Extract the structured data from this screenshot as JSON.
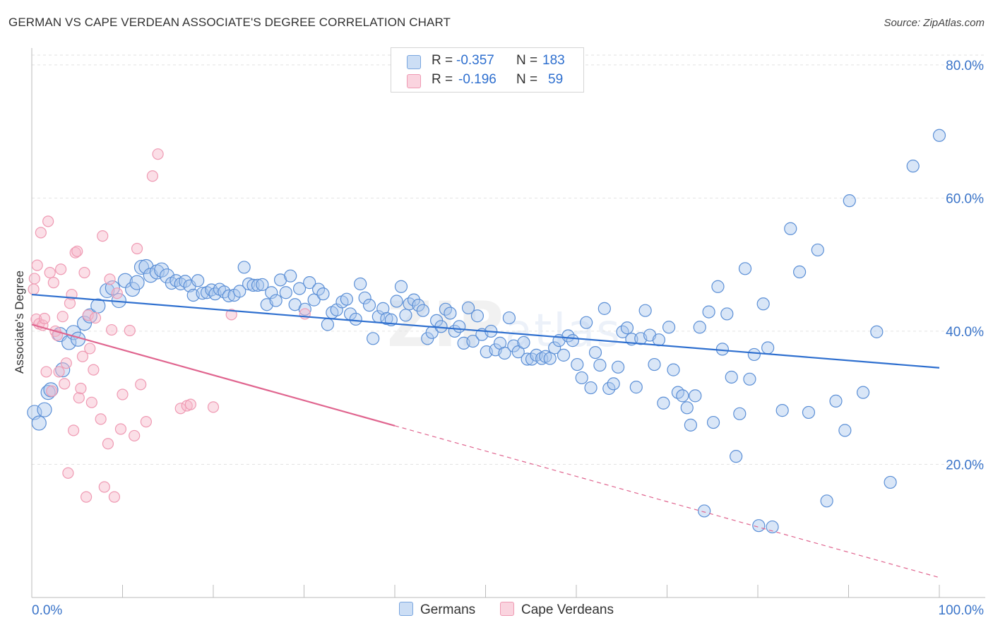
{
  "header": {
    "title": "GERMAN VS CAPE VERDEAN ASSOCIATE'S DEGREE CORRELATION CHART",
    "source": "Source: ZipAtlas.com"
  },
  "legend_top": {
    "rows": [
      {
        "r_label": "R =",
        "r_value": "-0.357",
        "n_label": "N =",
        "n_value": "183",
        "color": "#a9c9ee"
      },
      {
        "r_label": "R =",
        "r_value": "-0.196",
        "n_label": "N =",
        "n_value": "59",
        "color": "#f6b8c9"
      }
    ]
  },
  "legend_bottom": {
    "germans": "Germans",
    "cape_verdeans": "Cape Verdeans"
  },
  "watermark": {
    "bold": "ZIP",
    "light": "atlas"
  },
  "colors": {
    "blue_fill": "rgba(170,200,238,0.45)",
    "blue_stroke": "#5b8fd6",
    "blue_line": "#2e6fcf",
    "pink_fill": "rgba(246,184,201,0.45)",
    "pink_stroke": "#ef9ab3",
    "pink_line": "#e0658f",
    "axis_text": "#3a74c9"
  },
  "chart_data": {
    "type": "scatter",
    "title": "GERMAN VS CAPE VERDEAN ASSOCIATE'S DEGREE CORRELATION CHART",
    "xlabel": "",
    "ylabel": "Associate's Degree",
    "xlim": [
      0,
      100
    ],
    "ylim": [
      0,
      82
    ],
    "x_tick_labels": [
      "0.0%",
      "100.0%"
    ],
    "y_ticks": [
      20,
      40,
      60,
      80
    ],
    "y_tick_labels": [
      "20.0%",
      "40.0%",
      "60.0%",
      "80.0%"
    ],
    "grid": true,
    "legend_position": "top-center",
    "series": [
      {
        "name": "Germans",
        "r": -0.357,
        "n": 183,
        "trend": {
          "x": [
            0,
            100
          ],
          "y": [
            45.5,
            34.5
          ],
          "solid_until_x": 100
        },
        "points": [
          [
            0.3,
            27.8
          ],
          [
            0.8,
            26.2
          ],
          [
            1.4,
            28.2
          ],
          [
            1.8,
            30.8
          ],
          [
            2.1,
            31.2
          ],
          [
            3.1,
            39.5
          ],
          [
            3.4,
            34.2
          ],
          [
            4.1,
            38.3
          ],
          [
            4.6,
            39.8
          ],
          [
            5.1,
            38.8
          ],
          [
            5.8,
            41.2
          ],
          [
            6.4,
            42.3
          ],
          [
            7.3,
            43.8
          ],
          [
            8.3,
            46.1
          ],
          [
            8.9,
            46.5
          ],
          [
            9.6,
            44.6
          ],
          [
            10.3,
            47.6
          ],
          [
            11.1,
            46.3
          ],
          [
            11.6,
            47.3
          ],
          [
            12.1,
            49.6
          ],
          [
            12.6,
            49.7
          ],
          [
            13.1,
            48.4
          ],
          [
            13.8,
            48.9
          ],
          [
            14.3,
            49.2
          ],
          [
            14.9,
            48.3
          ],
          [
            15.4,
            47.2
          ],
          [
            15.9,
            47.6
          ],
          [
            16.4,
            47.1
          ],
          [
            16.9,
            47.5
          ],
          [
            17.4,
            46.8
          ],
          [
            17.8,
            45.4
          ],
          [
            18.3,
            47.6
          ],
          [
            18.8,
            45.7
          ],
          [
            19.3,
            45.8
          ],
          [
            19.8,
            46.2
          ],
          [
            20.2,
            45.6
          ],
          [
            20.7,
            46.3
          ],
          [
            21.2,
            45.9
          ],
          [
            21.7,
            45.3
          ],
          [
            22.3,
            45.4
          ],
          [
            22.9,
            46.0
          ],
          [
            23.4,
            49.6
          ],
          [
            23.9,
            47.1
          ],
          [
            24.4,
            46.9
          ],
          [
            24.9,
            46.9
          ],
          [
            25.4,
            47.0
          ],
          [
            25.9,
            44.0
          ],
          [
            26.4,
            45.8
          ],
          [
            26.9,
            44.6
          ],
          [
            27.4,
            47.7
          ],
          [
            28.0,
            45.8
          ],
          [
            28.5,
            48.3
          ],
          [
            29.0,
            44.0
          ],
          [
            29.5,
            46.4
          ],
          [
            30.1,
            43.3
          ],
          [
            30.6,
            47.3
          ],
          [
            31.1,
            44.7
          ],
          [
            31.6,
            46.3
          ],
          [
            32.1,
            45.6
          ],
          [
            32.6,
            41.0
          ],
          [
            33.1,
            42.8
          ],
          [
            33.6,
            43.2
          ],
          [
            34.2,
            44.4
          ],
          [
            34.7,
            44.8
          ],
          [
            35.1,
            42.6
          ],
          [
            35.7,
            41.8
          ],
          [
            36.2,
            47.1
          ],
          [
            36.7,
            45.0
          ],
          [
            37.2,
            43.9
          ],
          [
            37.6,
            38.9
          ],
          [
            38.2,
            42.2
          ],
          [
            38.7,
            43.4
          ],
          [
            39.1,
            41.9
          ],
          [
            39.6,
            41.7
          ],
          [
            40.2,
            44.5
          ],
          [
            40.7,
            46.7
          ],
          [
            41.2,
            42.4
          ],
          [
            41.6,
            44.1
          ],
          [
            42.1,
            44.7
          ],
          [
            42.6,
            43.9
          ],
          [
            43.1,
            43.1
          ],
          [
            43.6,
            38.9
          ],
          [
            44.1,
            39.8
          ],
          [
            44.6,
            41.6
          ],
          [
            45.1,
            40.7
          ],
          [
            45.6,
            43.3
          ],
          [
            46.1,
            42.7
          ],
          [
            46.6,
            40.0
          ],
          [
            47.1,
            40.7
          ],
          [
            47.6,
            38.2
          ],
          [
            48.1,
            43.5
          ],
          [
            48.6,
            38.5
          ],
          [
            49.1,
            42.3
          ],
          [
            49.6,
            39.5
          ],
          [
            50.1,
            36.9
          ],
          [
            50.6,
            40.0
          ],
          [
            51.1,
            37.2
          ],
          [
            51.6,
            38.2
          ],
          [
            52.1,
            36.7
          ],
          [
            52.6,
            42.0
          ],
          [
            53.1,
            37.8
          ],
          [
            53.6,
            36.9
          ],
          [
            54.2,
            38.3
          ],
          [
            54.6,
            35.8
          ],
          [
            55.1,
            35.8
          ],
          [
            55.6,
            36.4
          ],
          [
            56.2,
            35.9
          ],
          [
            56.6,
            36.2
          ],
          [
            57.1,
            35.9
          ],
          [
            57.6,
            37.5
          ],
          [
            58.1,
            38.6
          ],
          [
            58.6,
            36.4
          ],
          [
            59.1,
            39.3
          ],
          [
            59.6,
            38.6
          ],
          [
            60.1,
            35.0
          ],
          [
            60.6,
            33.0
          ],
          [
            61.1,
            41.3
          ],
          [
            61.6,
            31.5
          ],
          [
            62.1,
            36.8
          ],
          [
            62.6,
            34.9
          ],
          [
            63.1,
            43.4
          ],
          [
            63.6,
            31.4
          ],
          [
            64.1,
            32.1
          ],
          [
            64.6,
            34.6
          ],
          [
            65.1,
            39.9
          ],
          [
            65.6,
            40.5
          ],
          [
            66.1,
            38.8
          ],
          [
            66.6,
            31.6
          ],
          [
            67.1,
            38.9
          ],
          [
            67.6,
            43.1
          ],
          [
            68.1,
            39.4
          ],
          [
            68.6,
            35.0
          ],
          [
            69.1,
            38.7
          ],
          [
            69.6,
            29.2
          ],
          [
            70.2,
            40.6
          ],
          [
            70.7,
            34.2
          ],
          [
            71.2,
            30.8
          ],
          [
            71.7,
            30.3
          ],
          [
            72.2,
            28.5
          ],
          [
            72.6,
            25.9
          ],
          [
            73.1,
            30.3
          ],
          [
            73.6,
            40.6
          ],
          [
            74.1,
            13.0
          ],
          [
            74.6,
            42.9
          ],
          [
            75.1,
            26.3
          ],
          [
            75.6,
            46.7
          ],
          [
            76.1,
            37.3
          ],
          [
            76.6,
            42.6
          ],
          [
            77.1,
            33.1
          ],
          [
            77.6,
            21.2
          ],
          [
            78.0,
            27.6
          ],
          [
            78.6,
            49.4
          ],
          [
            79.1,
            32.8
          ],
          [
            79.6,
            36.5
          ],
          [
            80.1,
            10.8
          ],
          [
            80.6,
            44.1
          ],
          [
            81.1,
            37.5
          ],
          [
            81.6,
            10.6
          ],
          [
            82.7,
            28.1
          ],
          [
            83.6,
            55.4
          ],
          [
            84.6,
            48.9
          ],
          [
            85.6,
            27.8
          ],
          [
            86.6,
            52.2
          ],
          [
            87.6,
            14.5
          ],
          [
            88.6,
            29.5
          ],
          [
            89.6,
            25.1
          ],
          [
            90.1,
            59.6
          ],
          [
            91.6,
            30.8
          ],
          [
            93.1,
            39.9
          ],
          [
            94.6,
            17.3
          ],
          [
            97.1,
            64.8
          ],
          [
            100.0,
            69.4
          ]
        ]
      },
      {
        "name": "Cape Verdeans",
        "r": -0.196,
        "n": 59,
        "trend": {
          "x": [
            0,
            100
          ],
          "y": [
            41.0,
            3.0
          ],
          "solid_until_x": 40
        },
        "points": [
          [
            0.2,
            46.3
          ],
          [
            0.3,
            47.9
          ],
          [
            0.5,
            41.8
          ],
          [
            0.6,
            49.9
          ],
          [
            0.8,
            41.1
          ],
          [
            1.0,
            54.8
          ],
          [
            1.2,
            40.9
          ],
          [
            1.4,
            41.9
          ],
          [
            1.6,
            33.9
          ],
          [
            1.8,
            56.5
          ],
          [
            2.0,
            48.8
          ],
          [
            2.2,
            31.0
          ],
          [
            2.4,
            47.3
          ],
          [
            2.6,
            40.0
          ],
          [
            2.8,
            39.4
          ],
          [
            3.0,
            33.9
          ],
          [
            3.2,
            49.3
          ],
          [
            3.4,
            42.2
          ],
          [
            3.6,
            32.1
          ],
          [
            3.8,
            35.2
          ],
          [
            4.0,
            18.7
          ],
          [
            4.2,
            44.2
          ],
          [
            4.4,
            45.5
          ],
          [
            4.6,
            25.1
          ],
          [
            4.8,
            51.8
          ],
          [
            5.0,
            52.0
          ],
          [
            5.2,
            30.0
          ],
          [
            5.4,
            31.4
          ],
          [
            5.6,
            36.2
          ],
          [
            5.8,
            48.8
          ],
          [
            6.0,
            15.1
          ],
          [
            6.2,
            42.4
          ],
          [
            6.4,
            37.4
          ],
          [
            6.6,
            29.3
          ],
          [
            6.8,
            34.2
          ],
          [
            7.0,
            42.0
          ],
          [
            7.6,
            26.8
          ],
          [
            7.8,
            54.3
          ],
          [
            8.0,
            16.6
          ],
          [
            8.4,
            23.1
          ],
          [
            8.6,
            47.8
          ],
          [
            8.8,
            40.2
          ],
          [
            9.1,
            15.1
          ],
          [
            9.4,
            45.7
          ],
          [
            9.8,
            25.3
          ],
          [
            10.0,
            30.5
          ],
          [
            10.8,
            40.1
          ],
          [
            11.3,
            24.3
          ],
          [
            11.6,
            52.4
          ],
          [
            12.0,
            32.0
          ],
          [
            12.6,
            26.4
          ],
          [
            13.3,
            63.3
          ],
          [
            13.9,
            66.6
          ],
          [
            16.4,
            28.4
          ],
          [
            17.1,
            28.8
          ],
          [
            17.5,
            29.0
          ],
          [
            20.0,
            28.6
          ],
          [
            22.0,
            42.5
          ],
          [
            30.1,
            42.6
          ]
        ]
      }
    ]
  }
}
